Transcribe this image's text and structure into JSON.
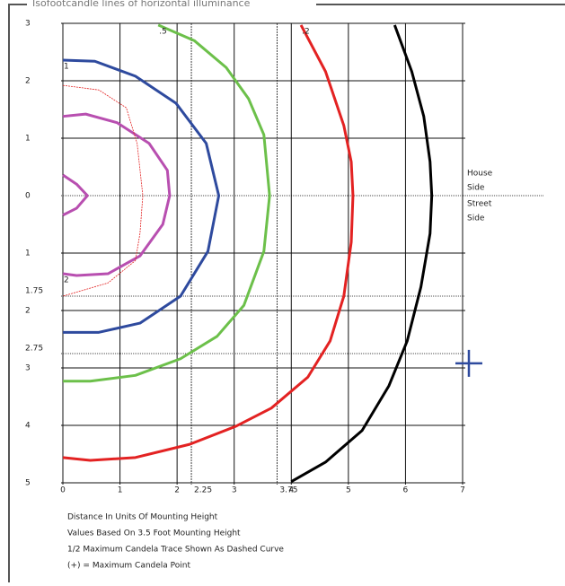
{
  "chart_data": {
    "type": "contour",
    "title": "Isofootcandle lines of horizontal illuminance",
    "xlim": [
      0,
      7
    ],
    "ylim": [
      -3,
      5
    ],
    "xticks": [
      0,
      1,
      2,
      2.25,
      3,
      3.75,
      4,
      5,
      6,
      7
    ],
    "yticks": [
      {
        "value": -3,
        "label": "3"
      },
      {
        "value": -2,
        "label": "2"
      },
      {
        "value": -1,
        "label": "1"
      },
      0,
      1,
      1.75,
      2,
      2.75,
      3,
      4,
      5
    ],
    "dashed_ticks": [
      2.25,
      3.75,
      1.75,
      2.75
    ],
    "grid": true,
    "side_labels": {
      "upper": [
        "House",
        "Side"
      ],
      "lower": [
        "Street",
        "Side"
      ]
    },
    "series": [
      {
        "name": null,
        "color": "#000000",
        "dashed": false,
        "x": [
          5.81,
          6.11,
          6.32,
          6.43,
          6.46,
          6.43,
          6.27,
          6.03,
          5.71,
          5.24,
          4.6,
          4.0
        ],
        "y": [
          -2.97,
          -2.16,
          -1.38,
          -0.59,
          0,
          0.66,
          1.59,
          2.53,
          3.31,
          4.09,
          4.64,
          4.98
        ]
      },
      {
        "name": ".2",
        "color": "#e32222",
        "dashed": false,
        "x": [
          4.17,
          4.6,
          4.92,
          5.05,
          5.08,
          5.05,
          4.92,
          4.68,
          4.29,
          3.65,
          3.02,
          2.22,
          1.27,
          0.48,
          0
        ],
        "y": [
          -2.97,
          -2.16,
          -1.22,
          -0.59,
          0,
          0.81,
          1.75,
          2.53,
          3.16,
          3.7,
          4.02,
          4.33,
          4.56,
          4.61,
          4.56
        ]
      },
      {
        "name": ".5",
        "color": "#6cc04a",
        "dashed": false,
        "x": [
          1.67,
          2.3,
          2.86,
          3.25,
          3.52,
          3.62,
          3.52,
          3.17,
          2.7,
          2.06,
          1.27,
          0.48,
          0
        ],
        "y": [
          -2.97,
          -2.7,
          -2.23,
          -1.69,
          -1.06,
          0,
          0.97,
          1.91,
          2.45,
          2.84,
          3.13,
          3.23,
          3.23
        ]
      },
      {
        "name": "1",
        "color": "#2e4a9e",
        "dashed": false,
        "x": [
          0,
          0.56,
          1.27,
          1.98,
          2.51,
          2.73,
          2.54,
          2.06,
          1.35,
          0.63,
          0
        ],
        "y": [
          -2.36,
          -2.34,
          -2.08,
          -1.61,
          -0.91,
          0,
          0.97,
          1.75,
          2.22,
          2.38,
          2.38
        ]
      },
      {
        "name": "2",
        "color": "#b84fb0",
        "dashed": false,
        "x": [
          0,
          0.24,
          0.79,
          1.35,
          1.75,
          1.87,
          1.83,
          1.51,
          0.95,
          0.4,
          0
        ],
        "y": [
          1.36,
          1.39,
          1.36,
          1.05,
          0.5,
          0,
          -0.44,
          -0.91,
          -1.27,
          -1.42,
          -1.38
        ]
      },
      {
        "name": null,
        "color": "#b84fb0",
        "dashed": false,
        "x": [
          0,
          0.24,
          0.43,
          0.24,
          0
        ],
        "y": [
          -0.36,
          -0.2,
          0,
          0.22,
          0.34
        ]
      },
      {
        "name": null,
        "color": "#e32222",
        "dashed": true,
        "x": [
          0,
          0.63,
          1.11,
          1.3,
          1.4,
          1.35,
          1.27,
          0.79,
          0
        ],
        "y": [
          -1.92,
          -1.84,
          -1.53,
          -0.91,
          0,
          0.66,
          1.13,
          1.52,
          1.75
        ]
      }
    ],
    "max_point": {
      "x": 7.11,
      "y": 2.92,
      "color": "#2e4a9e"
    },
    "notes": [
      "Distance In Units Of Mounting Height",
      "Values Based On 3.5 Foot Mounting Height",
      "1/2 Maximum Candela Trace Shown As Dashed Curve",
      "(+) = Maximum Candela Point"
    ]
  }
}
